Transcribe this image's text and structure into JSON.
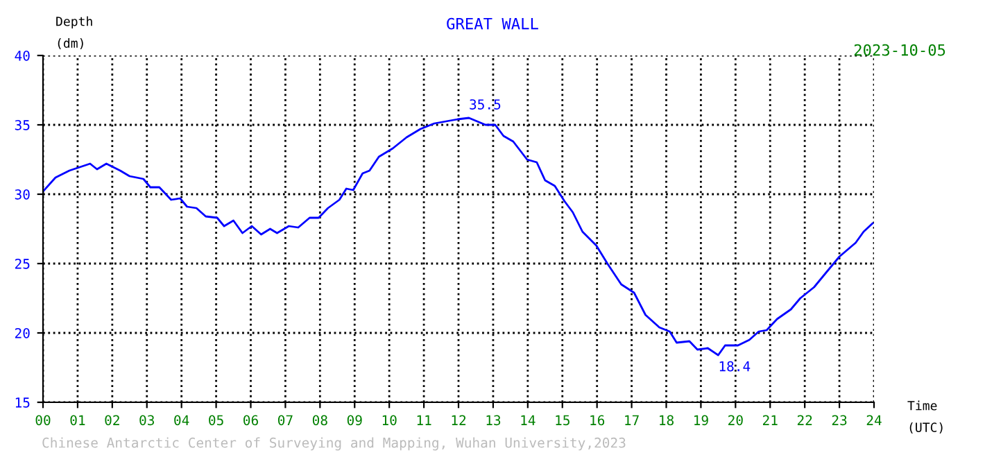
{
  "chart_data": {
    "type": "line",
    "title": "GREAT WALL",
    "xlabel": "Time\n(UTC)",
    "ylabel": "Depth\n(dm)",
    "series": [
      {
        "color": "#0000ff",
        "x": [
          0,
          0.36,
          0.76,
          1.36,
          1.56,
          1.83,
          2.23,
          2.5,
          2.9,
          3.1,
          3.36,
          3.7,
          3.96,
          4.16,
          4.43,
          4.7,
          5.03,
          5.23,
          5.5,
          5.76,
          6.03,
          6.3,
          6.56,
          6.76,
          7.1,
          7.37,
          7.7,
          7.96,
          8.23,
          8.56,
          8.76,
          8.96,
          9.23,
          9.43,
          9.7,
          10.1,
          10.5,
          10.9,
          11.3,
          11.97,
          12.3,
          12.78,
          13.06,
          13.3,
          13.58,
          13.98,
          14.26,
          14.5,
          14.78,
          15.06,
          15.3,
          15.58,
          15.98,
          16.3,
          16.7,
          17.07,
          17.4,
          17.8,
          18.1,
          18.3,
          18.67,
          18.9,
          19.2,
          19.5,
          19.7,
          20.07,
          20.4,
          20.67,
          20.9,
          21.2,
          21.6,
          21.87,
          22.27,
          22.6,
          23.0,
          23.47,
          23.7,
          23.96
        ],
        "values": [
          30.2,
          31.2,
          31.7,
          32.2,
          31.8,
          32.2,
          31.7,
          31.3,
          31.1,
          30.5,
          30.5,
          29.6,
          29.7,
          29.1,
          29.0,
          28.4,
          28.3,
          27.7,
          28.1,
          27.2,
          27.7,
          27.1,
          27.5,
          27.2,
          27.7,
          27.6,
          28.3,
          28.3,
          29.0,
          29.6,
          30.4,
          30.3,
          31.5,
          31.7,
          32.7,
          33.3,
          34.1,
          34.7,
          35.1,
          35.4,
          35.5,
          35.0,
          35.0,
          34.2,
          33.8,
          32.5,
          32.3,
          31.0,
          30.6,
          29.5,
          28.7,
          27.3,
          26.3,
          25.0,
          23.5,
          22.9,
          21.3,
          20.4,
          20.1,
          19.3,
          19.4,
          18.8,
          18.9,
          18.4,
          19.1,
          19.1,
          19.5,
          20.1,
          20.2,
          21.0,
          21.7,
          22.5,
          23.3,
          24.3,
          25.5,
          26.5,
          27.3,
          27.9
        ]
      }
    ],
    "xlim": [
      0,
      24
    ],
    "ylim": [
      15,
      40
    ],
    "xticks": [
      {
        "value": 0,
        "label": "00"
      },
      {
        "value": 1,
        "label": "01"
      },
      {
        "value": 2,
        "label": "02"
      },
      {
        "value": 3,
        "label": "03"
      },
      {
        "value": 4,
        "label": "04"
      },
      {
        "value": 5,
        "label": "05"
      },
      {
        "value": 6,
        "label": "06"
      },
      {
        "value": 7,
        "label": "07"
      },
      {
        "value": 8,
        "label": "08"
      },
      {
        "value": 9,
        "label": "09"
      },
      {
        "value": 10,
        "label": "10"
      },
      {
        "value": 11,
        "label": "11"
      },
      {
        "value": 12,
        "label": "12"
      },
      {
        "value": 13,
        "label": "13"
      },
      {
        "value": 14,
        "label": "14"
      },
      {
        "value": 15,
        "label": "15"
      },
      {
        "value": 16,
        "label": "16"
      },
      {
        "value": 17,
        "label": "17"
      },
      {
        "value": 18,
        "label": "18"
      },
      {
        "value": 19,
        "label": "19"
      },
      {
        "value": 20,
        "label": "20"
      },
      {
        "value": 21,
        "label": "21"
      },
      {
        "value": 22,
        "label": "22"
      },
      {
        "value": 23,
        "label": "23"
      },
      {
        "value": 24,
        "label": "24"
      }
    ],
    "yticks": [
      15,
      20,
      25,
      30,
      35,
      40
    ],
    "grid": true,
    "line_style": "solid",
    "marker": "none",
    "annotations": [
      {
        "text": "35.5",
        "x": 12.3,
        "y": 35.5
      },
      {
        "text": "18.4",
        "x": 19.5,
        "y": 18.4
      },
      "2023-10-05",
      "Chinese Antarctic Center of Surveying and Mapping, Wuhan University,2023"
    ]
  }
}
